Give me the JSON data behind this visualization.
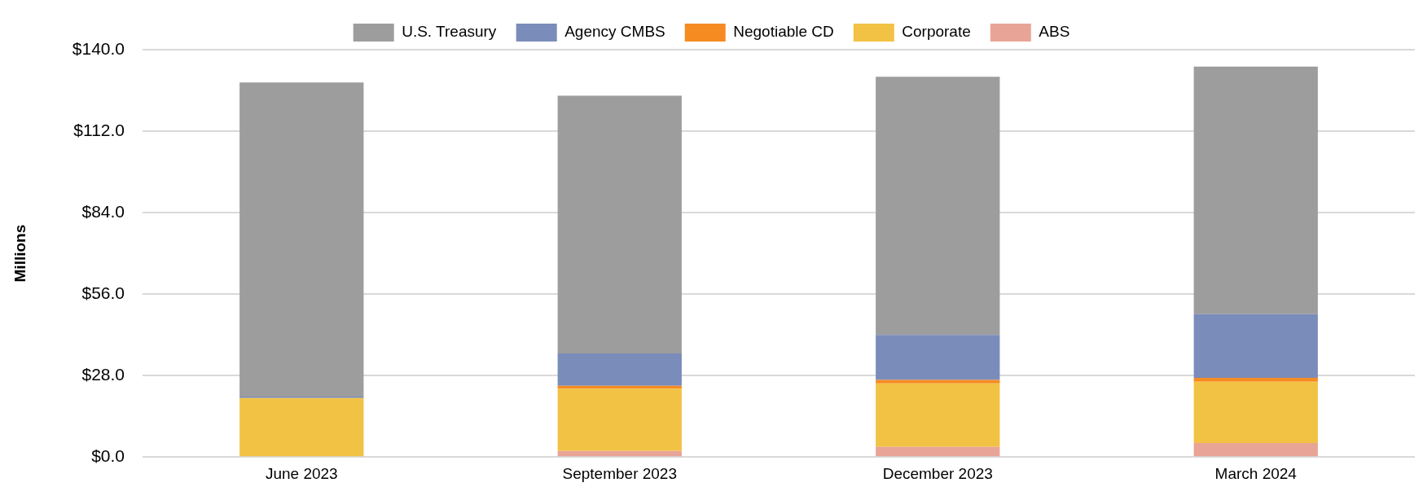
{
  "chart_data": {
    "type": "bar",
    "stacked": true,
    "ylabel": "Millions",
    "categories": [
      "June 2023",
      "September 2023",
      "December 2023",
      "March 2024"
    ],
    "series": [
      {
        "name": "ABS",
        "color": "#e8a496",
        "values": [
          null,
          2.1,
          3.5,
          4.8
        ]
      },
      {
        "name": "Corporate",
        "color": "#f2c244",
        "values": [
          20.3,
          21.4,
          21.8,
          21.1
        ]
      },
      {
        "name": "Negotiable CD",
        "color": "#f68b22",
        "values": [
          null,
          1.0,
          1.2,
          1.3
        ]
      },
      {
        "name": "Agency CMBS",
        "color": "#7a8cba",
        "values": [
          0.5,
          11.1,
          15.5,
          21.9
        ]
      },
      {
        "name": "U.S. Treasury",
        "color": "#9d9d9d",
        "values": [
          107.9,
          88.6,
          88.7,
          85.1
        ]
      }
    ],
    "ylim": [
      0,
      140
    ],
    "yticks": [
      {
        "value": 0,
        "label": "$0.0"
      },
      {
        "value": 28,
        "label": "$28.0"
      },
      {
        "value": 56,
        "label": "$56.0"
      },
      {
        "value": 84,
        "label": "$84.0"
      },
      {
        "value": 112,
        "label": "$112.0"
      },
      {
        "value": 140,
        "label": "$140.0"
      }
    ],
    "grid": "y",
    "legend": "top"
  }
}
